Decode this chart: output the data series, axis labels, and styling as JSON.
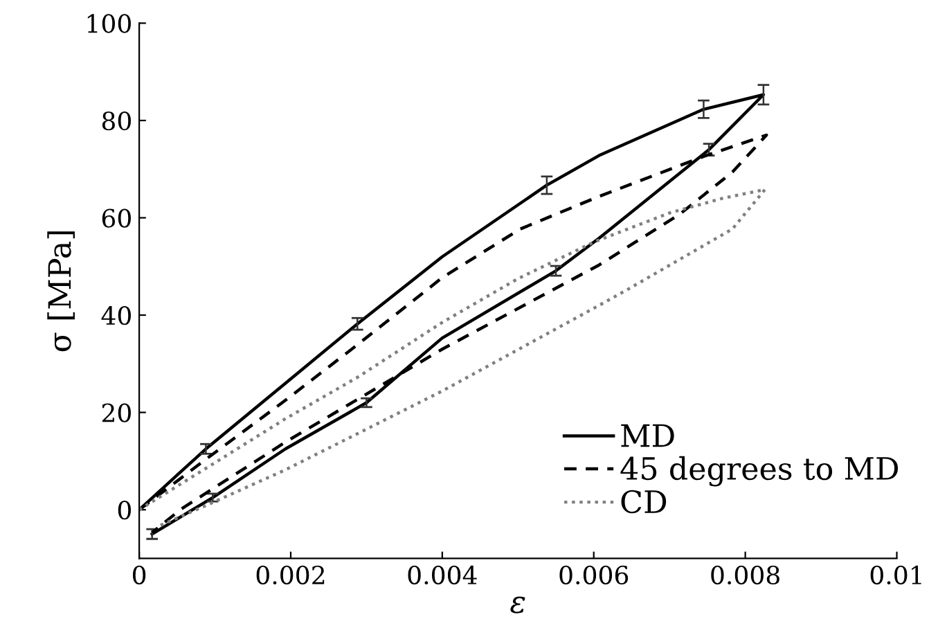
{
  "chart_data": {
    "type": "line",
    "xlabel": "ε",
    "ylabel": "σ [MPa]",
    "xlim": [
      0,
      0.01
    ],
    "xticks": [
      0,
      0.002,
      0.004,
      0.006,
      0.008,
      0.01
    ],
    "ylim": [
      -10,
      100
    ],
    "yticks": [
      0,
      20,
      40,
      60,
      80,
      100
    ],
    "grid": false,
    "legend": "bottom right",
    "marker": "none",
    "series": [
      {
        "name": "MD",
        "color": "#000000",
        "line_style": "solid",
        "x": [
          0,
          0.00088,
          0.00193,
          0.00288,
          0.004,
          0.00538,
          0.00607,
          0.00745,
          0.00824,
          0.00752,
          0.00607,
          0.0055,
          0.004,
          0.003,
          0.00193,
          0.00097,
          0.00017
        ],
        "values": [
          0,
          12.5,
          26,
          38.2,
          52,
          66.7,
          72.8,
          82.3,
          85.3,
          74,
          55.8,
          49.1,
          35.3,
          22,
          12.5,
          2.5,
          -5
        ],
        "errors": [
          null,
          1,
          null,
          1.2,
          null,
          1.8,
          null,
          1.8,
          2,
          1.2,
          null,
          1,
          null,
          0.9,
          null,
          0.8,
          1
        ]
      },
      {
        "name": "45 degrees to MD",
        "color": "#000000",
        "line_style": "dashed",
        "x": [
          0,
          0.0009,
          0.00193,
          0.00288,
          0.004,
          0.00503,
          0.00607,
          0.00745,
          0.00828,
          0.00783,
          0.00714,
          0.00607,
          0.004,
          0.00193,
          0.00055,
          0.00017
        ],
        "values": [
          0,
          10.6,
          22.5,
          33.9,
          47.7,
          57.7,
          64.4,
          72.6,
          77,
          69.4,
          60.8,
          50.3,
          33,
          13.9,
          0.1,
          -4.7
        ]
      },
      {
        "name": "CD",
        "color": "#808080",
        "line_style": "dotted",
        "x": [
          0,
          0.0009,
          0.00193,
          0.00288,
          0.004,
          0.005,
          0.006,
          0.007,
          0.0077,
          0.00826,
          0.00783,
          0.00645,
          0.00607,
          0.004,
          0.00193,
          0.0009,
          0.00028
        ],
        "values": [
          0,
          8.7,
          18.7,
          27.2,
          38.5,
          47.5,
          55,
          61,
          64,
          65.8,
          57.7,
          45.3,
          42,
          24.4,
          8.2,
          1,
          -3.2
        ]
      }
    ]
  }
}
